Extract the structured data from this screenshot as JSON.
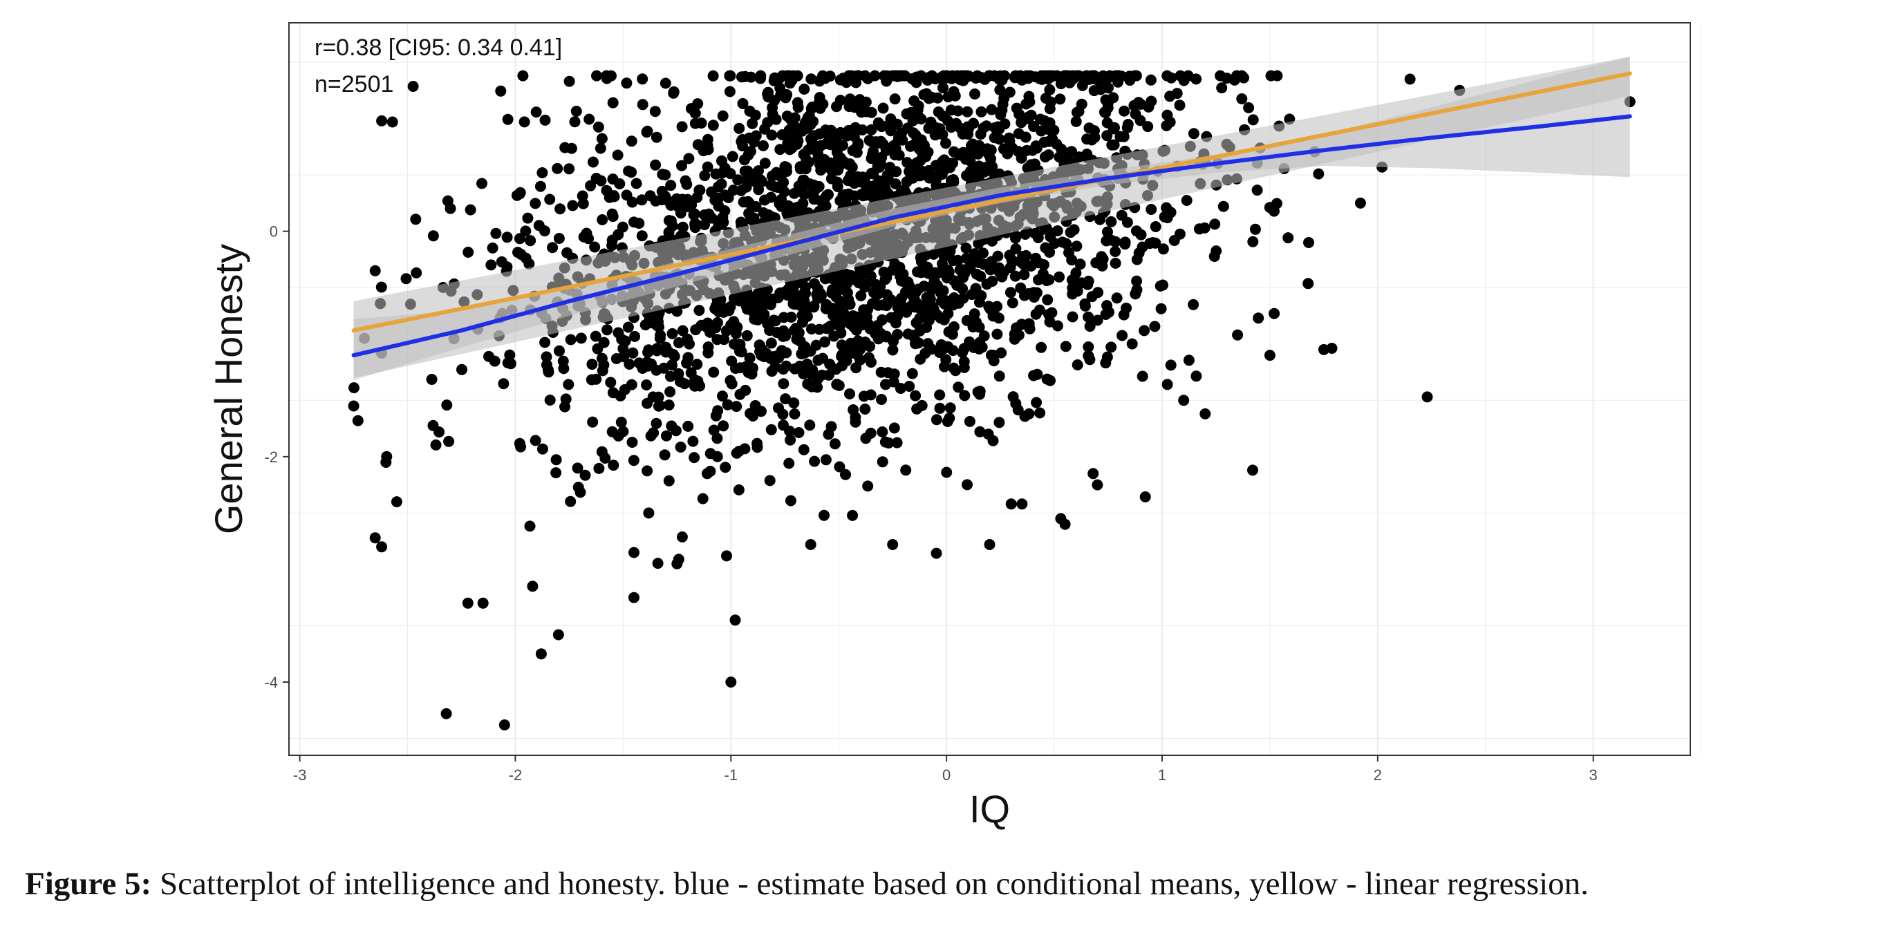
{
  "chart_data": {
    "type": "scatter",
    "title": "",
    "xlabel": "IQ",
    "ylabel": "General Honesty",
    "xlim": [
      -3.05,
      3.45
    ],
    "ylim": [
      -4.65,
      1.85
    ],
    "x_ticks": [
      -3,
      -2,
      -1,
      0,
      1,
      2,
      3
    ],
    "y_ticks": [
      -4,
      -2,
      0
    ],
    "x_tick_labels": [
      "-3",
      "-2",
      "-1",
      "0",
      "1",
      "2",
      "3"
    ],
    "y_tick_labels": [
      "-4",
      "-2",
      "0"
    ],
    "grid": true,
    "annotations": [
      "r=0.38 [CI95: 0.34 0.41]",
      "n=2501"
    ],
    "series": [
      {
        "kind": "points",
        "count_shown": 2501,
        "values_sample": [
          [
            -2.75,
            -1.55
          ],
          [
            -2.73,
            -1.68
          ],
          [
            -2.65,
            -2.72
          ],
          [
            -2.62,
            -2.8
          ],
          [
            -2.6,
            -2.05
          ],
          [
            -2.55,
            -2.4
          ],
          [
            -2.32,
            -4.28
          ],
          [
            -2.05,
            -4.38
          ],
          [
            -1.0,
            -4.0
          ],
          [
            -1.88,
            -3.75
          ],
          [
            -2.22,
            -3.3
          ],
          [
            -2.15,
            -3.3
          ],
          [
            -1.92,
            -3.15
          ],
          [
            -1.8,
            -3.58
          ],
          [
            -0.98,
            -3.45
          ],
          [
            -1.45,
            -3.25
          ],
          [
            -1.25,
            -2.95
          ],
          [
            -1.45,
            -2.85
          ],
          [
            -1.02,
            -2.88
          ],
          [
            -0.63,
            -2.78
          ],
          [
            -0.25,
            -2.78
          ],
          [
            0.2,
            -2.78
          ],
          [
            0.53,
            -2.55
          ],
          [
            0.55,
            -2.6
          ],
          [
            0.3,
            -2.42
          ],
          [
            0.35,
            -2.42
          ],
          [
            0.68,
            -2.15
          ],
          [
            0.7,
            -2.25
          ],
          [
            1.42,
            -2.12
          ],
          [
            2.23,
            -1.47
          ],
          [
            1.75,
            -1.05
          ],
          [
            1.5,
            -1.1
          ],
          [
            1.2,
            -1.62
          ],
          [
            1.1,
            -1.5
          ],
          [
            1.92,
            0.25
          ],
          [
            2.02,
            0.57
          ],
          [
            2.15,
            1.35
          ],
          [
            2.38,
            1.25
          ],
          [
            3.17,
            1.15
          ],
          [
            1.68,
            -0.1
          ],
          [
            1.35,
            -0.92
          ],
          [
            1.52,
            -0.73
          ],
          [
            -2.62,
            0.98
          ],
          [
            -2.57,
            0.97
          ],
          [
            -2.65,
            -0.35
          ],
          [
            -2.7,
            -0.95
          ]
        ]
      },
      {
        "name": "",
        "kind": "line",
        "color": "#e6a43a",
        "x": [
          -2.75,
          3.17
        ],
        "y": [
          -0.88,
          1.4
        ],
        "ci_upper": [
          -0.62,
          1.55
        ],
        "ci_lower": [
          -1.3,
          1.2
        ]
      },
      {
        "name": "",
        "kind": "line",
        "color": "#1f2fe6",
        "x": [
          -2.75,
          -2.25,
          -1.75,
          -1.25,
          -0.75,
          -0.25,
          0.25,
          0.75,
          1.25,
          1.75,
          2.25,
          2.75,
          3.17
        ],
        "y": [
          -1.1,
          -0.88,
          -0.62,
          -0.38,
          -0.13,
          0.12,
          0.32,
          0.47,
          0.6,
          0.72,
          0.83,
          0.93,
          1.02
        ],
        "ci_upper": [
          -0.78,
          -0.7,
          -0.5,
          -0.27,
          -0.04,
          0.2,
          0.39,
          0.54,
          0.68,
          0.86,
          1.1,
          1.35,
          1.55
        ],
        "ci_lower": [
          -1.32,
          -1.03,
          -0.75,
          -0.49,
          -0.22,
          0.04,
          0.25,
          0.41,
          0.52,
          0.58,
          0.56,
          0.52,
          0.48
        ]
      }
    ],
    "colors": {
      "panel_border": "#333333",
      "grid": "#ebebeb",
      "ci_band": "#bdbdbd",
      "points": "#000000"
    }
  },
  "caption": {
    "label": "Figure 5:",
    "text": " Scatterplot of intelligence and honesty. blue - estimate based on conditional means, yellow - linear regression."
  }
}
